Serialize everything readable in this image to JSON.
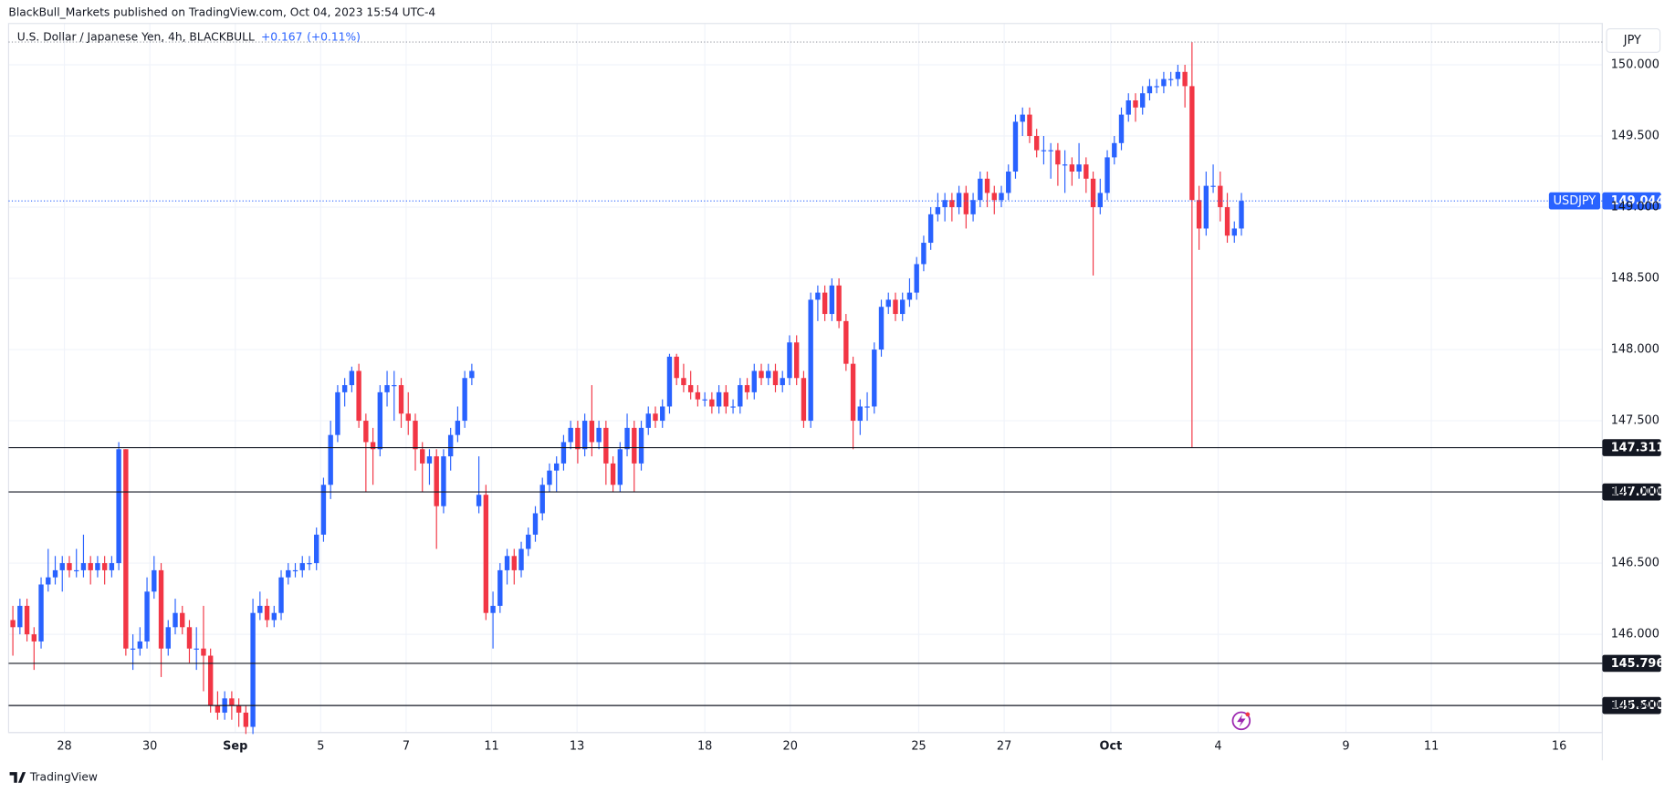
{
  "chart_data": {
    "type": "candlestick",
    "header": "BlackBull_Markets published on TradingView.com, Oct 04, 2023 15:54 UTC-4",
    "title": "U.S. Dollar / Japanese Yen, 4h, BLACKBULL",
    "change": "+0.167",
    "change_pct": "(+0.11%)",
    "currency": "JPY",
    "symbol": "USDJPY",
    "brand": "TradingView",
    "up_color": "#2962ff",
    "down_color": "#f23645",
    "grid": true,
    "ylim": [
      145.31,
      150.29
    ],
    "yticks": [
      {
        "value": 145.5,
        "label": "145.500"
      },
      {
        "value": 146,
        "label": "146.000"
      },
      {
        "value": 146.5,
        "label": "146.500"
      },
      {
        "value": 147,
        "label": "147.000"
      },
      {
        "value": 147.5,
        "label": "147.500"
      },
      {
        "value": 148,
        "label": "148.000"
      },
      {
        "value": 148.5,
        "label": "148.500"
      },
      {
        "value": 149,
        "label": "149.000"
      },
      {
        "value": 149.5,
        "label": "149.500"
      },
      {
        "value": 150,
        "label": "150.000"
      }
    ],
    "xticks": [
      {
        "value": 7.3,
        "label": "28"
      },
      {
        "value": 19.4,
        "label": "30"
      },
      {
        "value": 31.5,
        "label": "Sep"
      },
      {
        "value": 43.6,
        "label": "5"
      },
      {
        "value": 55.7,
        "label": "7"
      },
      {
        "value": 67.8,
        "label": "11"
      },
      {
        "value": 79.9,
        "label": "13"
      },
      {
        "value": 98,
        "label": "18"
      },
      {
        "value": 110.1,
        "label": "20"
      },
      {
        "value": 128.3,
        "label": "25"
      },
      {
        "value": 140.4,
        "label": "27"
      },
      {
        "value": 155.5,
        "label": "Oct"
      },
      {
        "value": 170.7,
        "label": "4"
      },
      {
        "value": 188.8,
        "label": "9"
      },
      {
        "value": 200.9,
        "label": "11"
      },
      {
        "value": 219,
        "label": "16"
      }
    ],
    "levels": [
      147.311,
      {
        "value": 147,
        "label": "147.000"
      },
      145.796,
      {
        "value": 145.5,
        "label": "145.500"
      }
    ],
    "candles": [
      [
        146.1,
        146.2,
        145.85,
        146.05
      ],
      [
        146.05,
        146.25,
        146.0,
        146.2
      ],
      [
        146.2,
        146.25,
        145.95,
        146.0
      ],
      [
        146.0,
        146.05,
        145.75,
        145.95
      ],
      [
        145.95,
        146.4,
        145.9,
        146.35
      ],
      [
        146.35,
        146.6,
        146.3,
        146.4
      ],
      [
        146.4,
        146.55,
        146.35,
        146.45
      ],
      [
        146.45,
        146.55,
        146.3,
        146.5
      ],
      [
        146.5,
        146.55,
        146.4,
        146.45
      ],
      [
        146.45,
        146.6,
        146.4,
        146.45
      ],
      [
        146.45,
        146.7,
        146.4,
        146.5
      ],
      [
        146.5,
        146.55,
        146.35,
        146.45
      ],
      [
        146.45,
        146.55,
        146.4,
        146.5
      ],
      [
        146.5,
        146.55,
        146.35,
        146.45
      ],
      [
        146.45,
        146.55,
        146.4,
        146.5
      ],
      [
        146.5,
        147.35,
        146.45,
        147.3
      ],
      [
        147.3,
        147.3,
        145.85,
        145.9
      ],
      [
        145.9,
        146.0,
        145.75,
        145.9
      ],
      [
        145.9,
        146.05,
        145.85,
        145.95
      ],
      [
        145.95,
        146.4,
        145.9,
        146.3
      ],
      [
        146.3,
        146.55,
        146.25,
        146.45
      ],
      [
        146.45,
        146.5,
        145.7,
        145.9
      ],
      [
        145.9,
        146.1,
        145.85,
        146.05
      ],
      [
        146.05,
        146.25,
        146.0,
        146.15
      ],
      [
        146.15,
        146.2,
        146.0,
        146.05
      ],
      [
        146.05,
        146.1,
        145.8,
        145.9
      ],
      [
        145.9,
        146.05,
        145.75,
        145.9
      ],
      [
        145.9,
        146.2,
        145.6,
        145.85
      ],
      [
        145.85,
        145.9,
        145.45,
        145.5
      ],
      [
        145.5,
        145.6,
        145.4,
        145.45
      ],
      [
        145.45,
        145.6,
        145.4,
        145.55
      ],
      [
        145.55,
        145.6,
        145.4,
        145.5
      ],
      [
        145.5,
        145.55,
        145.35,
        145.45
      ],
      [
        145.45,
        145.5,
        145.3,
        145.35
      ],
      [
        145.35,
        146.25,
        145.3,
        146.15
      ],
      [
        146.15,
        146.3,
        146.1,
        146.2
      ],
      [
        146.2,
        146.25,
        146.05,
        146.1
      ],
      [
        146.1,
        146.2,
        146.05,
        146.15
      ],
      [
        146.15,
        146.45,
        146.1,
        146.4
      ],
      [
        146.4,
        146.5,
        146.35,
        146.45
      ],
      [
        146.45,
        146.5,
        146.4,
        146.45
      ],
      [
        146.45,
        146.55,
        146.4,
        146.5
      ],
      [
        146.5,
        146.55,
        146.45,
        146.5
      ],
      [
        146.5,
        146.75,
        146.45,
        146.7
      ],
      [
        146.7,
        147.1,
        146.65,
        147.05
      ],
      [
        147.05,
        147.5,
        146.95,
        147.4
      ],
      [
        147.4,
        147.75,
        147.35,
        147.7
      ],
      [
        147.7,
        147.8,
        147.6,
        147.75
      ],
      [
        147.75,
        147.88,
        147.7,
        147.85
      ],
      [
        147.85,
        147.9,
        147.45,
        147.5
      ],
      [
        147.5,
        147.55,
        147.0,
        147.35
      ],
      [
        147.35,
        147.45,
        147.05,
        147.3
      ],
      [
        147.3,
        147.75,
        147.25,
        147.7
      ],
      [
        147.7,
        147.85,
        147.6,
        147.75
      ],
      [
        147.75,
        147.85,
        147.5,
        147.75
      ],
      [
        147.75,
        147.8,
        147.45,
        147.55
      ],
      [
        147.55,
        147.7,
        147.4,
        147.5
      ],
      [
        147.5,
        147.55,
        147.15,
        147.3
      ],
      [
        147.3,
        147.35,
        147.0,
        147.2
      ],
      [
        147.2,
        147.3,
        147.05,
        147.25
      ],
      [
        147.25,
        147.3,
        146.6,
        146.9
      ],
      [
        146.9,
        147.3,
        146.85,
        147.25
      ],
      [
        147.25,
        147.45,
        147.15,
        147.4
      ],
      [
        147.4,
        147.6,
        147.35,
        147.5
      ],
      [
        147.5,
        147.85,
        147.45,
        147.8
      ],
      [
        147.8,
        147.9,
        147.75,
        147.85
      ],
      [
        146.9,
        147.25,
        146.85,
        146.98
      ],
      [
        146.98,
        147.05,
        146.1,
        146.15
      ],
      [
        146.15,
        146.3,
        145.9,
        146.2
      ],
      [
        146.2,
        146.5,
        146.15,
        146.45
      ],
      [
        146.45,
        146.6,
        146.35,
        146.55
      ],
      [
        146.55,
        146.6,
        146.35,
        146.45
      ],
      [
        146.45,
        146.65,
        146.4,
        146.6
      ],
      [
        146.6,
        146.75,
        146.55,
        146.7
      ],
      [
        146.7,
        146.9,
        146.65,
        146.85
      ],
      [
        146.85,
        147.1,
        146.8,
        147.05
      ],
      [
        147.05,
        147.2,
        147.0,
        147.15
      ],
      [
        147.15,
        147.25,
        147.0,
        147.2
      ],
      [
        147.2,
        147.4,
        147.15,
        147.35
      ],
      [
        147.35,
        147.5,
        147.3,
        147.45
      ],
      [
        147.45,
        147.5,
        147.2,
        147.3
      ],
      [
        147.3,
        147.55,
        147.25,
        147.5
      ],
      [
        147.5,
        147.75,
        147.25,
        147.35
      ],
      [
        147.35,
        147.5,
        147.3,
        147.45
      ],
      [
        147.45,
        147.5,
        147.05,
        147.2
      ],
      [
        147.2,
        147.25,
        147.0,
        147.05
      ],
      [
        147.05,
        147.35,
        147.0,
        147.3
      ],
      [
        147.3,
        147.55,
        147.25,
        147.45
      ],
      [
        147.45,
        147.5,
        147.0,
        147.2
      ],
      [
        147.2,
        147.5,
        147.15,
        147.45
      ],
      [
        147.45,
        147.6,
        147.4,
        147.55
      ],
      [
        147.55,
        147.6,
        147.45,
        147.5
      ],
      [
        147.5,
        147.65,
        147.45,
        147.6
      ],
      [
        147.6,
        147.97,
        147.55,
        147.95
      ],
      [
        147.95,
        147.97,
        147.75,
        147.8
      ],
      [
        147.8,
        147.9,
        147.7,
        147.75
      ],
      [
        147.75,
        147.85,
        147.65,
        147.7
      ],
      [
        147.7,
        147.75,
        147.6,
        147.65
      ],
      [
        147.65,
        147.7,
        147.6,
        147.65
      ],
      [
        147.65,
        147.7,
        147.55,
        147.6
      ],
      [
        147.6,
        147.75,
        147.55,
        147.7
      ],
      [
        147.7,
        147.75,
        147.55,
        147.6
      ],
      [
        147.6,
        147.65,
        147.55,
        147.6
      ],
      [
        147.6,
        147.8,
        147.55,
        147.75
      ],
      [
        147.75,
        147.8,
        147.65,
        147.7
      ],
      [
        147.7,
        147.9,
        147.65,
        147.85
      ],
      [
        147.85,
        147.9,
        147.75,
        147.8
      ],
      [
        147.8,
        147.9,
        147.75,
        147.85
      ],
      [
        147.85,
        147.9,
        147.7,
        147.75
      ],
      [
        147.75,
        147.85,
        147.7,
        147.8
      ],
      [
        147.8,
        148.1,
        147.75,
        148.05
      ],
      [
        148.05,
        148.1,
        147.75,
        147.8
      ],
      [
        147.8,
        147.85,
        147.45,
        147.5
      ],
      [
        147.5,
        148.4,
        147.45,
        148.35
      ],
      [
        148.35,
        148.45,
        148.2,
        148.4
      ],
      [
        148.4,
        148.45,
        148.2,
        148.25
      ],
      [
        148.25,
        148.5,
        148.2,
        148.45
      ],
      [
        148.45,
        148.5,
        148.15,
        148.2
      ],
      [
        148.2,
        148.25,
        147.85,
        147.9
      ],
      [
        147.9,
        147.95,
        147.3,
        147.5
      ],
      [
        147.5,
        147.65,
        147.4,
        147.6
      ],
      [
        147.6,
        147.7,
        147.5,
        147.6
      ],
      [
        147.6,
        148.05,
        147.55,
        148.0
      ],
      [
        148.0,
        148.35,
        147.95,
        148.3
      ],
      [
        148.3,
        148.4,
        148.25,
        148.35
      ],
      [
        148.35,
        148.4,
        148.2,
        148.25
      ],
      [
        148.25,
        148.4,
        148.2,
        148.35
      ],
      [
        148.35,
        148.5,
        148.3,
        148.4
      ],
      [
        148.4,
        148.65,
        148.35,
        148.6
      ],
      [
        148.6,
        148.8,
        148.55,
        148.75
      ],
      [
        148.75,
        149.0,
        148.7,
        148.95
      ],
      [
        148.95,
        149.1,
        148.9,
        149.0
      ],
      [
        149.0,
        149.1,
        148.9,
        149.05
      ],
      [
        149.05,
        149.1,
        148.9,
        149.0
      ],
      [
        149.0,
        149.15,
        148.95,
        149.1
      ],
      [
        149.1,
        149.15,
        148.85,
        148.95
      ],
      [
        148.95,
        149.1,
        148.9,
        149.05
      ],
      [
        149.05,
        149.25,
        149.0,
        149.2
      ],
      [
        149.2,
        149.25,
        149.0,
        149.1
      ],
      [
        149.1,
        149.15,
        148.95,
        149.05
      ],
      [
        149.05,
        149.15,
        149.0,
        149.1
      ],
      [
        149.1,
        149.3,
        149.05,
        149.25
      ],
      [
        149.25,
        149.65,
        149.2,
        149.6
      ],
      [
        149.6,
        149.7,
        149.5,
        149.65
      ],
      [
        149.65,
        149.7,
        149.45,
        149.5
      ],
      [
        149.5,
        149.55,
        149.35,
        149.4
      ],
      [
        149.4,
        149.5,
        149.3,
        149.4
      ],
      [
        149.4,
        149.45,
        149.2,
        149.4
      ],
      [
        149.4,
        149.45,
        149.15,
        149.3
      ],
      [
        149.3,
        149.4,
        149.1,
        149.3
      ],
      [
        149.3,
        149.35,
        149.15,
        149.25
      ],
      [
        149.25,
        149.45,
        149.2,
        149.3
      ],
      [
        149.3,
        149.35,
        149.1,
        149.2
      ],
      [
        149.2,
        149.25,
        148.52,
        149.0
      ],
      [
        149.0,
        149.2,
        148.95,
        149.1
      ],
      [
        149.1,
        149.4,
        149.05,
        149.35
      ],
      [
        149.35,
        149.5,
        149.3,
        149.45
      ],
      [
        149.45,
        149.7,
        149.4,
        149.65
      ],
      [
        149.65,
        149.8,
        149.6,
        149.75
      ],
      [
        149.75,
        149.8,
        149.6,
        149.7
      ],
      [
        149.7,
        149.85,
        149.65,
        149.8
      ],
      [
        149.8,
        149.9,
        149.75,
        149.85
      ],
      [
        149.85,
        149.9,
        149.8,
        149.85
      ],
      [
        149.85,
        149.95,
        149.8,
        149.9
      ],
      [
        149.9,
        149.95,
        149.85,
        149.9
      ],
      [
        149.9,
        150.0,
        149.85,
        149.95
      ],
      [
        149.95,
        150.0,
        149.7,
        149.85
      ],
      [
        149.85,
        150.16,
        147.31,
        149.05
      ],
      [
        149.05,
        149.15,
        148.7,
        148.85
      ],
      [
        148.85,
        149.25,
        148.8,
        149.15
      ],
      [
        149.15,
        149.3,
        149.1,
        149.15
      ],
      [
        149.15,
        149.25,
        148.9,
        149.0
      ],
      [
        149.0,
        149.1,
        148.75,
        148.8
      ],
      [
        148.8,
        148.9,
        148.75,
        148.85
      ],
      [
        148.85,
        149.1,
        148.8,
        149.044
      ]
    ]
  }
}
